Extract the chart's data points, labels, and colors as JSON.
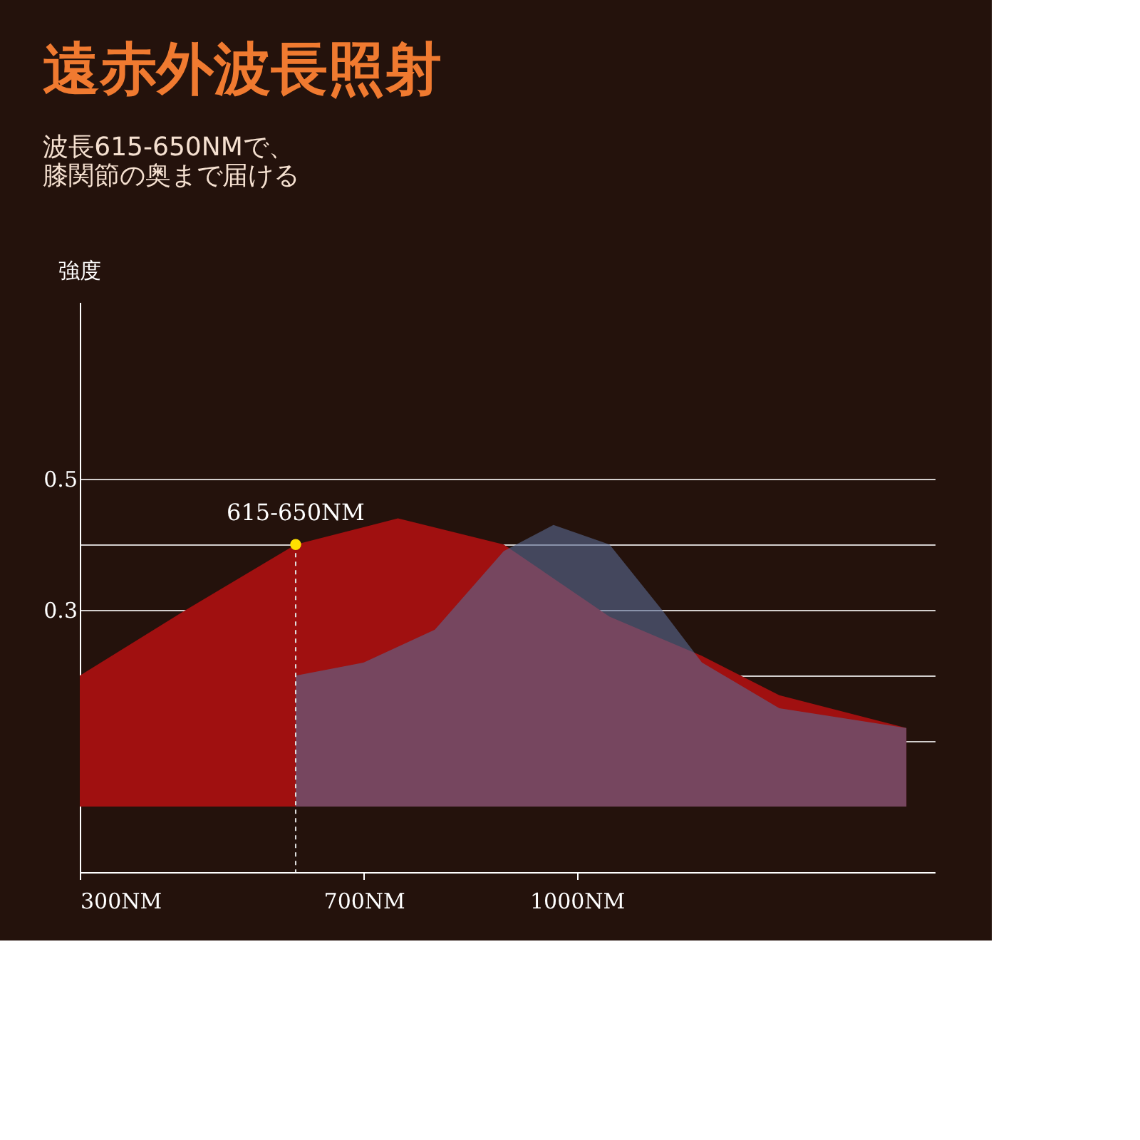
{
  "chart_data": {
    "type": "area",
    "title": "遠赤外波長照射",
    "subtitle": "波長615-650NMで、膝関節の奥まで届ける",
    "ylabel": "強度",
    "xlim": [
      300,
      1504
    ],
    "ylim": [
      -0.1,
      0.77
    ],
    "xticks": [
      {
        "value": 300,
        "label": "300NM"
      },
      {
        "value": 700,
        "label": "700NM"
      },
      {
        "value": 1000,
        "label": "1000NM"
      }
    ],
    "yticks": [
      {
        "value": 0.1,
        "label": null
      },
      {
        "value": 0.2,
        "label": null
      },
      0.3,
      {
        "value": 0.4,
        "label": null
      },
      0.5
    ],
    "series": [
      {
        "color": "#a01010",
        "x": [
          300,
          449,
          604,
          748,
          897,
          1046,
          1176,
          1285,
          1464
        ],
        "values": [
          0.2,
          0.3,
          0.4,
          0.44,
          0.4,
          0.29,
          0.23,
          0.17,
          0.12
        ]
      },
      {
        "color": "#5a6a95",
        "x": [
          604,
          700,
          800,
          897,
          967,
          1046,
          1120,
          1176,
          1285,
          1464
        ],
        "values": [
          0.2,
          0.22,
          0.27,
          0.39,
          0.43,
          0.4,
          0.3,
          0.22,
          0.15,
          0.12
        ]
      }
    ],
    "annotations": [
      {
        "text": "615-650NM",
        "x": 604,
        "y": 0.4
      }
    ],
    "grid": "y"
  }
}
